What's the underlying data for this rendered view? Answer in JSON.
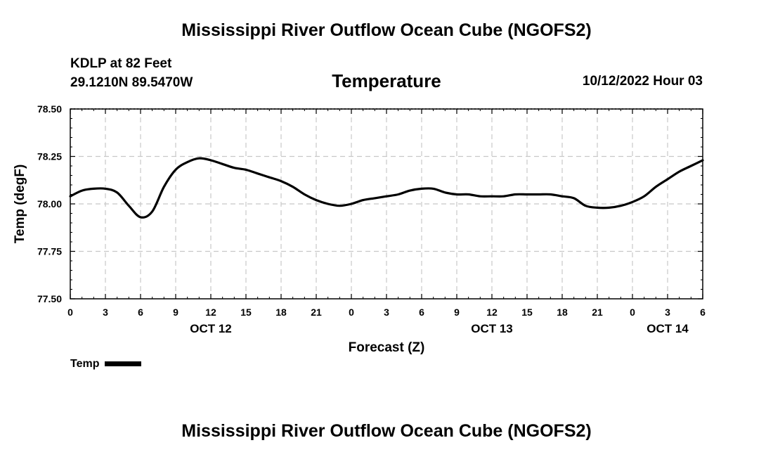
{
  "header": {
    "title": "Mississippi River Outflow Ocean Cube (NGOFS2)",
    "station_name": "KDLP at 82 Feet",
    "coordinates": "29.1210N  89.5470W",
    "date": "10/12/2022 Hour 03"
  },
  "footer": {
    "title": "Mississippi River Outflow Ocean Cube (NGOFS2)"
  },
  "legend": {
    "label": "Temp"
  },
  "chart_data": {
    "type": "line",
    "title": "Temperature",
    "xlabel": "Forecast (Z)",
    "ylabel": "Temp (degF)",
    "x_unit": "hours since OCT 12 00Z",
    "xlim": [
      0,
      54
    ],
    "ylim": [
      77.5,
      78.5
    ],
    "grid": true,
    "y_ticks": [
      77.5,
      77.75,
      78.0,
      78.25,
      78.5
    ],
    "y_tick_labels": [
      "77.50",
      "77.75",
      "78.00",
      "78.25",
      "78.50"
    ],
    "x_ticks": [
      0,
      3,
      6,
      9,
      12,
      15,
      18,
      21,
      24,
      27,
      30,
      33,
      36,
      39,
      42,
      45,
      48,
      51,
      54
    ],
    "x_tick_labels": [
      "0",
      "3",
      "6",
      "9",
      "12",
      "15",
      "18",
      "21",
      "0",
      "3",
      "6",
      "9",
      "12",
      "15",
      "18",
      "21",
      "0",
      "3",
      "6"
    ],
    "date_labels": [
      {
        "x": 12,
        "label": "OCT 12"
      },
      {
        "x": 36,
        "label": "OCT 13"
      },
      {
        "x": 51,
        "label": "OCT 14"
      }
    ],
    "series": [
      {
        "name": "Temp",
        "color": "#000000",
        "x": [
          0,
          1,
          2,
          3,
          4,
          5,
          6,
          7,
          8,
          9,
          10,
          11,
          12,
          13,
          14,
          15,
          16,
          17,
          18,
          19,
          20,
          21,
          22,
          23,
          24,
          25,
          26,
          27,
          28,
          29,
          30,
          31,
          32,
          33,
          34,
          35,
          36,
          37,
          38,
          39,
          40,
          41,
          42,
          43,
          44,
          45,
          46,
          47,
          48,
          49,
          50,
          51,
          52,
          53,
          54
        ],
        "values": [
          78.04,
          78.07,
          78.08,
          78.08,
          78.06,
          77.99,
          77.93,
          77.96,
          78.09,
          78.18,
          78.22,
          78.24,
          78.23,
          78.21,
          78.19,
          78.18,
          78.16,
          78.14,
          78.12,
          78.09,
          78.05,
          78.02,
          78.0,
          77.99,
          78.0,
          78.02,
          78.03,
          78.04,
          78.05,
          78.07,
          78.08,
          78.08,
          78.06,
          78.05,
          78.05,
          78.04,
          78.04,
          78.04,
          78.05,
          78.05,
          78.05,
          78.05,
          78.04,
          78.03,
          77.99,
          77.98,
          77.98,
          77.99,
          78.01,
          78.04,
          78.09,
          78.13,
          78.17,
          78.2,
          78.23
        ]
      }
    ]
  }
}
